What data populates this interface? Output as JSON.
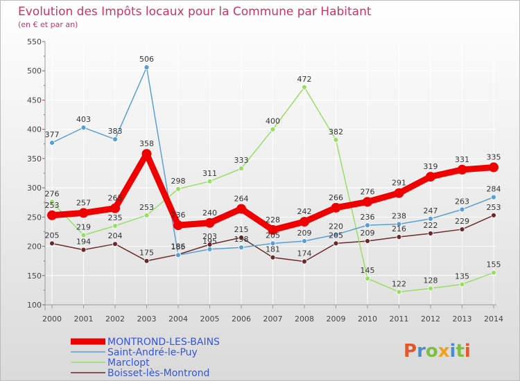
{
  "chart_data": {
    "type": "line",
    "title": "Evolution des Impôts locaux pour la Commune par Habitant",
    "subtitle": "(en € et par an)",
    "xlabel": "",
    "ylabel": "",
    "ylim": [
      100,
      550
    ],
    "yticks": [
      100,
      150,
      200,
      250,
      300,
      350,
      400,
      450,
      500,
      550
    ],
    "categories": [
      "2000",
      "2001",
      "2002",
      "2003",
      "2004",
      "2005",
      "2006",
      "2007",
      "2008",
      "2009",
      "2010",
      "2011",
      "2012",
      "2013",
      "2014"
    ],
    "series": [
      {
        "name": "MONTROND-LES-BAINS",
        "color": "#ee0000",
        "values": [
          253,
          257,
          265,
          358,
          236,
          240,
          264,
          228,
          242,
          266,
          276,
          291,
          319,
          331,
          335
        ]
      },
      {
        "name": "Saint-André-le-Puy",
        "color": "#5a9fd4",
        "values": [
          377,
          403,
          383,
          506,
          185,
          195,
          198,
          205,
          209,
          220,
          236,
          238,
          247,
          263,
          284
        ]
      },
      {
        "name": "Marclopt",
        "color": "#99dd66",
        "values": [
          276,
          219,
          235,
          253,
          298,
          311,
          333,
          400,
          472,
          382,
          145,
          122,
          128,
          135,
          155
        ]
      },
      {
        "name": "Boisset-lès-Montrond",
        "color": "#6b2a2a",
        "values": [
          205,
          194,
          204,
          175,
          186,
          203,
          215,
          181,
          174,
          205,
          209,
          216,
          222,
          229,
          253
        ]
      }
    ]
  },
  "colors": {
    "title": "#cc3366",
    "axis": "#999999",
    "tick": "#cc3366",
    "grid": "#ffffff",
    "legend_text": "#3355dd",
    "background_top": "#ffffff",
    "background_bottom": "#dcdcdc"
  },
  "logo": {
    "text": "Proxiti"
  }
}
